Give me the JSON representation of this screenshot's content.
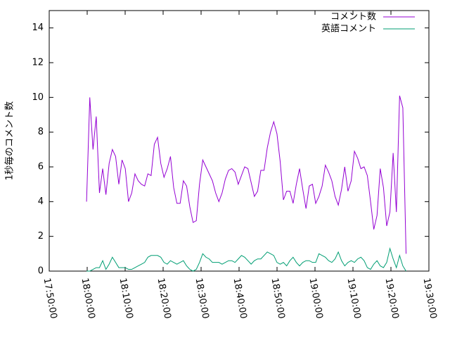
{
  "chart_data": {
    "type": "line",
    "ylabel": "1秒毎のコメント数",
    "x": [
      "17:59:50",
      "18:00:41",
      "18:01:32",
      "18:02:23",
      "18:03:14",
      "18:04:05",
      "18:04:56",
      "18:05:47",
      "18:06:38",
      "18:07:29",
      "18:08:20",
      "18:09:11",
      "18:10:02",
      "18:10:53",
      "18:11:44",
      "18:12:35",
      "18:13:26",
      "18:14:17",
      "18:15:08",
      "18:15:59",
      "18:16:50",
      "18:17:41",
      "18:18:32",
      "18:19:23",
      "18:20:14",
      "18:21:05",
      "18:21:56",
      "18:22:47",
      "18:23:38",
      "18:24:29",
      "18:25:20",
      "18:26:11",
      "18:27:02",
      "18:27:53",
      "18:28:44",
      "18:29:35",
      "18:30:26",
      "18:31:17",
      "18:32:08",
      "18:32:59",
      "18:33:50",
      "18:34:41",
      "18:35:32",
      "18:36:23",
      "18:37:14",
      "18:38:05",
      "18:38:56",
      "18:39:47",
      "18:40:38",
      "18:41:29",
      "18:42:20",
      "18:43:11",
      "18:44:02",
      "18:44:53",
      "18:45:44",
      "18:46:35",
      "18:47:26",
      "18:48:17",
      "18:49:08",
      "18:49:59",
      "18:50:50",
      "18:51:41",
      "18:52:32",
      "18:53:23",
      "18:54:14",
      "18:55:05",
      "18:55:56",
      "18:56:47",
      "18:57:38",
      "18:58:29",
      "18:59:20",
      "19:00:11",
      "19:01:02",
      "19:01:53",
      "19:02:44",
      "19:03:35",
      "19:04:26",
      "19:05:17",
      "19:06:08",
      "19:06:59",
      "19:07:50",
      "19:08:41",
      "19:09:32",
      "19:10:23",
      "19:11:14",
      "19:12:05",
      "19:12:56",
      "19:13:47",
      "19:14:38",
      "19:15:29",
      "19:16:20",
      "19:17:11",
      "19:18:02",
      "19:18:53",
      "19:19:44",
      "19:20:35",
      "19:21:26",
      "19:22:17",
      "19:23:08",
      "19:23:59"
    ],
    "series": [
      {
        "name": "コメント数",
        "color": "#9400d3",
        "values": [
          4.0,
          10.0,
          7.0,
          8.9,
          4.5,
          5.9,
          4.4,
          6.2,
          7.0,
          6.6,
          5.0,
          6.4,
          5.9,
          4.0,
          4.5,
          5.6,
          5.2,
          5.0,
          4.9,
          5.6,
          5.5,
          7.3,
          7.7,
          6.2,
          5.4,
          5.9,
          6.6,
          4.8,
          3.9,
          3.9,
          5.2,
          4.9,
          3.7,
          2.8,
          2.9,
          5.0,
          6.4,
          6.0,
          5.6,
          5.2,
          4.5,
          4.0,
          4.5,
          5.3,
          5.8,
          5.9,
          5.7,
          5.0,
          5.5,
          6.0,
          5.9,
          5.1,
          4.3,
          4.6,
          5.8,
          5.8,
          7.1,
          8.0,
          8.6,
          7.9,
          6.3,
          4.1,
          4.6,
          4.6,
          3.9,
          5.0,
          5.9,
          4.7,
          3.6,
          4.9,
          5.0,
          3.9,
          4.3,
          4.9,
          6.1,
          5.7,
          5.2,
          4.3,
          3.8,
          4.7,
          6.0,
          4.6,
          5.2,
          6.9,
          6.5,
          5.9,
          6.0,
          5.5,
          4.0,
          2.4,
          3.2,
          5.9,
          4.8,
          2.6,
          3.4,
          6.8,
          3.4,
          10.1,
          9.4,
          1.0
        ]
      },
      {
        "name": "英語コメント",
        "color": "#009e73",
        "values": [
          0,
          0,
          0.1,
          0.2,
          0.2,
          0.6,
          0.1,
          0.4,
          0.8,
          0.5,
          0.2,
          0.2,
          0.2,
          0.1,
          0.1,
          0.2,
          0.3,
          0.4,
          0.5,
          0.8,
          0.9,
          0.9,
          0.9,
          0.8,
          0.5,
          0.4,
          0.6,
          0.5,
          0.4,
          0.5,
          0.6,
          0.3,
          0.1,
          0.0,
          0.1,
          0.5,
          1.0,
          0.8,
          0.7,
          0.5,
          0.5,
          0.5,
          0.4,
          0.5,
          0.6,
          0.6,
          0.5,
          0.7,
          0.9,
          0.8,
          0.6,
          0.4,
          0.6,
          0.7,
          0.7,
          0.9,
          1.1,
          1.0,
          0.9,
          0.5,
          0.4,
          0.5,
          0.3,
          0.6,
          0.8,
          0.5,
          0.3,
          0.5,
          0.6,
          0.6,
          0.5,
          0.5,
          1.0,
          0.9,
          0.8,
          0.6,
          0.5,
          0.7,
          1.1,
          0.6,
          0.3,
          0.5,
          0.6,
          0.5,
          0.7,
          0.8,
          0.6,
          0.2,
          0.1,
          0.4,
          0.6,
          0.3,
          0.2,
          0.5,
          1.3,
          0.7,
          0.2,
          0.9,
          0.3,
          0.0
        ]
      }
    ],
    "xlim": [
      "17:50:00",
      "19:30:00"
    ],
    "xticks": [
      "17:50:00",
      "18:00:00",
      "18:10:00",
      "18:20:00",
      "18:30:00",
      "18:40:00",
      "18:50:00",
      "19:00:00",
      "19:10:00",
      "19:20:00",
      "19:30:00"
    ],
    "ylim": [
      0,
      15
    ],
    "yticks": [
      0,
      2,
      4,
      6,
      8,
      10,
      12,
      14
    ],
    "grid": false,
    "legend": "top-right"
  }
}
